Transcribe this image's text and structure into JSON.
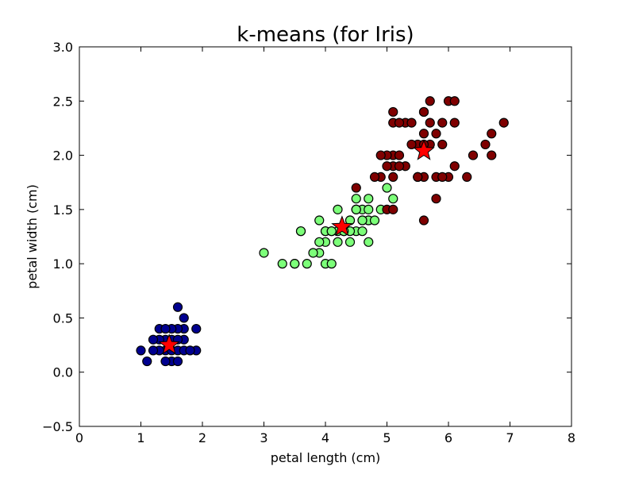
{
  "chart_data": {
    "type": "scatter",
    "title": "k-means (for Iris)",
    "xlabel": "petal length (cm)",
    "ylabel": "petal width (cm)",
    "xlim": [
      0,
      8
    ],
    "ylim": [
      -0.5,
      3.0
    ],
    "xticks": [
      0,
      1,
      2,
      3,
      4,
      5,
      6,
      7,
      8
    ],
    "xtick_labels": [
      "0",
      "1",
      "2",
      "3",
      "4",
      "5",
      "6",
      "7",
      "8"
    ],
    "yticks": [
      -0.5,
      0.0,
      0.5,
      1.0,
      1.5,
      2.0,
      2.5,
      3.0
    ],
    "ytick_labels": [
      "−0.5",
      "0.0",
      "0.5",
      "1.0",
      "1.5",
      "2.0",
      "2.5",
      "3.0"
    ],
    "grid": false,
    "legend": "none",
    "series": [
      {
        "color": "#00008f",
        "points": [
          [
            1.4,
            0.2
          ],
          [
            1.3,
            0.2
          ],
          [
            1.5,
            0.2
          ],
          [
            1.7,
            0.4
          ],
          [
            1.4,
            0.3
          ],
          [
            1.5,
            0.1
          ],
          [
            1.6,
            0.2
          ],
          [
            1.1,
            0.1
          ],
          [
            1.2,
            0.2
          ],
          [
            1.0,
            0.2
          ],
          [
            1.9,
            0.2
          ],
          [
            1.6,
            0.4
          ],
          [
            1.3,
            0.4
          ],
          [
            1.7,
            0.3
          ],
          [
            1.5,
            0.4
          ],
          [
            1.6,
            0.6
          ],
          [
            1.9,
            0.4
          ],
          [
            1.4,
            0.1
          ],
          [
            1.7,
            0.5
          ],
          [
            1.3,
            0.3
          ],
          [
            1.7,
            0.2
          ],
          [
            1.5,
            0.3
          ],
          [
            1.6,
            0.3
          ],
          [
            1.4,
            0.4
          ],
          [
            1.2,
            0.3
          ],
          [
            1.8,
            0.2
          ],
          [
            1.6,
            0.1
          ]
        ]
      },
      {
        "color": "#7cff79",
        "points": [
          [
            4.7,
            1.4
          ],
          [
            4.5,
            1.5
          ],
          [
            4.0,
            1.3
          ],
          [
            4.6,
            1.5
          ],
          [
            4.5,
            1.3
          ],
          [
            3.3,
            1.0
          ],
          [
            4.6,
            1.3
          ],
          [
            3.9,
            1.4
          ],
          [
            3.5,
            1.0
          ],
          [
            4.2,
            1.5
          ],
          [
            4.0,
            1.0
          ],
          [
            4.7,
            1.4
          ],
          [
            3.6,
            1.3
          ],
          [
            4.4,
            1.4
          ],
          [
            4.1,
            1.0
          ],
          [
            4.5,
            1.5
          ],
          [
            3.9,
            1.1
          ],
          [
            4.0,
            1.3
          ],
          [
            4.9,
            1.5
          ],
          [
            4.3,
            1.3
          ],
          [
            4.4,
            1.4
          ],
          [
            4.8,
            1.4
          ],
          [
            5.0,
            1.7
          ],
          [
            3.8,
            1.1
          ],
          [
            3.7,
            1.0
          ],
          [
            5.1,
            1.6
          ],
          [
            4.5,
            1.6
          ],
          [
            4.7,
            1.5
          ],
          [
            4.4,
            1.3
          ],
          [
            4.1,
            1.3
          ],
          [
            4.0,
            1.2
          ],
          [
            4.4,
            1.2
          ],
          [
            4.6,
            1.4
          ],
          [
            3.0,
            1.1
          ],
          [
            4.2,
            1.2
          ],
          [
            4.2,
            1.3
          ],
          [
            4.3,
            1.3
          ],
          [
            4.1,
            1.3
          ],
          [
            3.5,
            1.0
          ],
          [
            4.6,
            1.4
          ],
          [
            3.9,
            1.2
          ],
          [
            4.7,
            1.2
          ],
          [
            3.6,
            1.3
          ],
          [
            4.5,
            1.5
          ],
          [
            4.7,
            1.6
          ]
        ]
      },
      {
        "color": "#7f0000",
        "points": [
          [
            6.0,
            2.5
          ],
          [
            5.1,
            1.9
          ],
          [
            5.9,
            2.1
          ],
          [
            5.6,
            1.8
          ],
          [
            5.8,
            2.2
          ],
          [
            6.6,
            2.1
          ],
          [
            4.5,
            1.7
          ],
          [
            6.3,
            1.8
          ],
          [
            5.8,
            1.8
          ],
          [
            6.1,
            2.5
          ],
          [
            5.1,
            2.0
          ],
          [
            5.3,
            1.9
          ],
          [
            5.5,
            2.1
          ],
          [
            5.0,
            2.0
          ],
          [
            5.1,
            2.4
          ],
          [
            5.3,
            2.3
          ],
          [
            5.5,
            1.8
          ],
          [
            6.7,
            2.2
          ],
          [
            6.9,
            2.3
          ],
          [
            5.0,
            1.5
          ],
          [
            5.7,
            2.3
          ],
          [
            4.9,
            2.0
          ],
          [
            6.7,
            2.0
          ],
          [
            4.9,
            1.8
          ],
          [
            5.7,
            2.1
          ],
          [
            6.0,
            1.8
          ],
          [
            4.8,
            1.8
          ],
          [
            5.6,
            2.1
          ],
          [
            5.8,
            1.6
          ],
          [
            6.1,
            1.9
          ],
          [
            6.4,
            2.0
          ],
          [
            5.6,
            2.2
          ],
          [
            5.1,
            1.5
          ],
          [
            5.6,
            1.4
          ],
          [
            6.1,
            2.3
          ],
          [
            5.6,
            2.4
          ],
          [
            5.5,
            1.8
          ],
          [
            5.4,
            2.1
          ],
          [
            5.6,
            2.4
          ],
          [
            5.1,
            2.3
          ],
          [
            5.9,
            2.3
          ],
          [
            5.7,
            2.5
          ],
          [
            5.2,
            2.3
          ],
          [
            5.2,
            2.0
          ],
          [
            5.4,
            2.3
          ],
          [
            5.1,
            1.8
          ],
          [
            5.0,
            1.9
          ],
          [
            5.2,
            1.9
          ],
          [
            5.9,
            1.8
          ]
        ]
      }
    ],
    "centroids": {
      "color": "#ff0000",
      "marker": "star",
      "points": [
        [
          1.46,
          0.25
        ],
        [
          4.27,
          1.34
        ],
        [
          5.6,
          2.04
        ]
      ]
    }
  }
}
